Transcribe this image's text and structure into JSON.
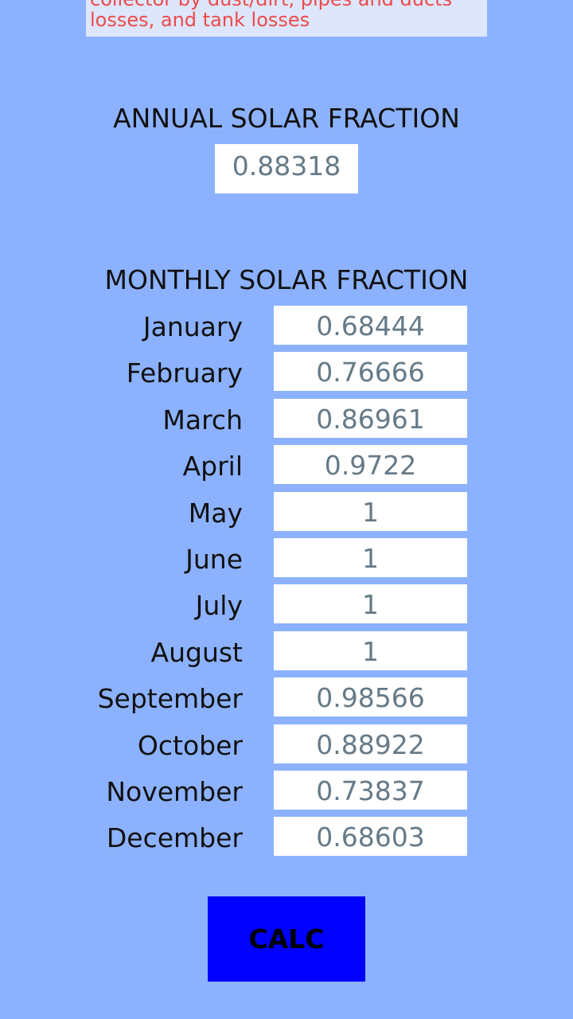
{
  "note": {
    "lines": [
      "collector by dust/dirt, pipes and ducts",
      "losses, and tank losses"
    ]
  },
  "annual": {
    "title": "ANNUAL SOLAR FRACTION",
    "value": "0.88318"
  },
  "monthly": {
    "title": "MONTHLY SOLAR FRACTION",
    "rows": [
      {
        "month": "January",
        "value": "0.68444"
      },
      {
        "month": "February",
        "value": "0.76666"
      },
      {
        "month": "March",
        "value": "0.86961"
      },
      {
        "month": "April",
        "value": "0.9722"
      },
      {
        "month": "May",
        "value": "1"
      },
      {
        "month": "June",
        "value": "1"
      },
      {
        "month": "July",
        "value": "1"
      },
      {
        "month": "August",
        "value": "1"
      },
      {
        "month": "September",
        "value": "0.98566"
      },
      {
        "month": "October",
        "value": "0.88922"
      },
      {
        "month": "November",
        "value": "0.73837"
      },
      {
        "month": "December",
        "value": "0.68603"
      }
    ]
  },
  "button": {
    "label": "CALC"
  }
}
